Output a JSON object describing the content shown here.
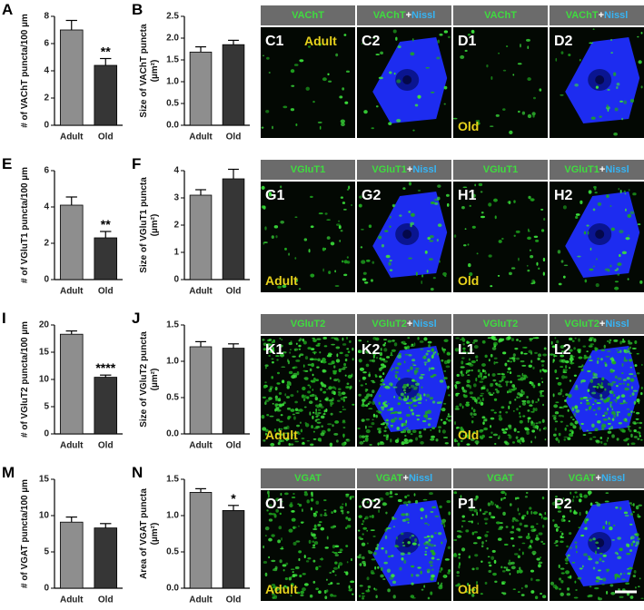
{
  "chart_data": [
    {
      "type": "bar",
      "panel": "A",
      "ylabel": [
        "# of VAChT puncta/100 µm"
      ],
      "categories": [
        "Adult",
        "Old"
      ],
      "values": [
        7.0,
        4.4
      ],
      "errors": [
        0.7,
        0.5
      ],
      "colors": [
        "#8e8e8e",
        "#363636"
      ],
      "ylim": [
        0,
        8
      ],
      "yticks": [
        0,
        2,
        4,
        6,
        8
      ],
      "significance": "**"
    },
    {
      "type": "bar",
      "panel": "B",
      "ylabel": [
        "Size of VAChT puncta",
        "(µm²)"
      ],
      "categories": [
        "Adult",
        "Old"
      ],
      "values": [
        1.68,
        1.85
      ],
      "errors": [
        0.12,
        0.1
      ],
      "colors": [
        "#8e8e8e",
        "#363636"
      ],
      "ylim": [
        0,
        2.5
      ],
      "yticks": [
        {
          "value": 0,
          "label": "0.0"
        },
        {
          "value": 0.5,
          "label": "0.5"
        },
        {
          "value": 1,
          "label": "1.0"
        },
        {
          "value": 1.5,
          "label": "1.5"
        },
        {
          "value": 2,
          "label": "2.0"
        },
        {
          "value": 2.5,
          "label": "2.5"
        }
      ]
    },
    {
      "type": "bar",
      "panel": "E",
      "ylabel": [
        "# of VGluT1 puncta/100 µm"
      ],
      "categories": [
        "Adult",
        "Old"
      ],
      "values": [
        4.1,
        2.3
      ],
      "errors": [
        0.45,
        0.35
      ],
      "colors": [
        "#8e8e8e",
        "#363636"
      ],
      "ylim": [
        0,
        6
      ],
      "yticks": [
        0,
        2,
        4,
        6
      ],
      "significance": "**"
    },
    {
      "type": "bar",
      "panel": "F",
      "ylabel": [
        "Size of VGluT1 puncta",
        "(µm²)"
      ],
      "categories": [
        "Adult",
        "Old"
      ],
      "values": [
        3.1,
        3.7
      ],
      "errors": [
        0.2,
        0.35
      ],
      "colors": [
        "#8e8e8e",
        "#363636"
      ],
      "ylim": [
        0,
        4
      ],
      "yticks": [
        0,
        1,
        2,
        3,
        4
      ]
    },
    {
      "type": "bar",
      "panel": "I",
      "ylabel": [
        "# of VGluT2 puncta/100 µm"
      ],
      "categories": [
        "Adult",
        "Old"
      ],
      "values": [
        18.3,
        10.4
      ],
      "errors": [
        0.6,
        0.4
      ],
      "colors": [
        "#8e8e8e",
        "#363636"
      ],
      "ylim": [
        0,
        20
      ],
      "yticks": [
        0,
        5,
        10,
        15,
        20
      ],
      "significance": "****"
    },
    {
      "type": "bar",
      "panel": "J",
      "ylabel": [
        "Size of VGluT2 puncta",
        "(µm²)"
      ],
      "categories": [
        "Adult",
        "Old"
      ],
      "values": [
        1.2,
        1.18
      ],
      "errors": [
        0.07,
        0.06
      ],
      "colors": [
        "#8e8e8e",
        "#363636"
      ],
      "ylim": [
        0,
        1.5
      ],
      "yticks": [
        {
          "value": 0,
          "label": "0.0"
        },
        {
          "value": 0.5,
          "label": "0.5"
        },
        {
          "value": 1,
          "label": "1.0"
        },
        {
          "value": 1.5,
          "label": "1.5"
        }
      ]
    },
    {
      "type": "bar",
      "panel": "M",
      "ylabel": [
        "# of VGAT puncta/100 µm"
      ],
      "categories": [
        "Adult",
        "Old"
      ],
      "values": [
        9.1,
        8.3
      ],
      "errors": [
        0.7,
        0.6
      ],
      "colors": [
        "#8e8e8e",
        "#363636"
      ],
      "ylim": [
        0,
        15
      ],
      "yticks": [
        0,
        5,
        10,
        15
      ]
    },
    {
      "type": "bar",
      "panel": "N",
      "ylabel": [
        "Area of VGAT puncta",
        "(µm²)"
      ],
      "categories": [
        "Adult",
        "Old"
      ],
      "values": [
        1.32,
        1.07
      ],
      "errors": [
        0.05,
        0.07
      ],
      "colors": [
        "#8e8e8e",
        "#363636"
      ],
      "ylim": [
        0,
        1.5
      ],
      "yticks": [
        {
          "value": 0,
          "label": "0.0"
        },
        {
          "value": 0.5,
          "label": "0.5"
        },
        {
          "value": 1,
          "label": "1.0"
        },
        {
          "value": 1.5,
          "label": "1.5"
        }
      ],
      "significance": "*"
    }
  ],
  "image_rows": [
    {
      "stain": "VAChT",
      "plus": "+",
      "counter": "Nissl",
      "panels": [
        {
          "label": "C1",
          "group": "Adult"
        },
        {
          "label": "C2"
        },
        {
          "label": "D1",
          "group": "Old"
        },
        {
          "label": "D2"
        }
      ]
    },
    {
      "stain": "VGluT1",
      "plus": "+",
      "counter": "Nissl",
      "panels": [
        {
          "label": "G1",
          "group": "Adult"
        },
        {
          "label": "G2"
        },
        {
          "label": "H1",
          "group": "Old"
        },
        {
          "label": "H2"
        }
      ]
    },
    {
      "stain": "VGluT2",
      "plus": "+",
      "counter": "Nissl",
      "panels": [
        {
          "label": "K1",
          "group": "Adult"
        },
        {
          "label": "K2"
        },
        {
          "label": "L1",
          "group": "Old"
        },
        {
          "label": "L2"
        }
      ]
    },
    {
      "stain": "VGAT",
      "plus": "+",
      "counter": "Nissl",
      "panels": [
        {
          "label": "O1",
          "group": "Adult"
        },
        {
          "label": "O2"
        },
        {
          "label": "P1",
          "group": "Old"
        },
        {
          "label": "P2"
        }
      ]
    }
  ]
}
